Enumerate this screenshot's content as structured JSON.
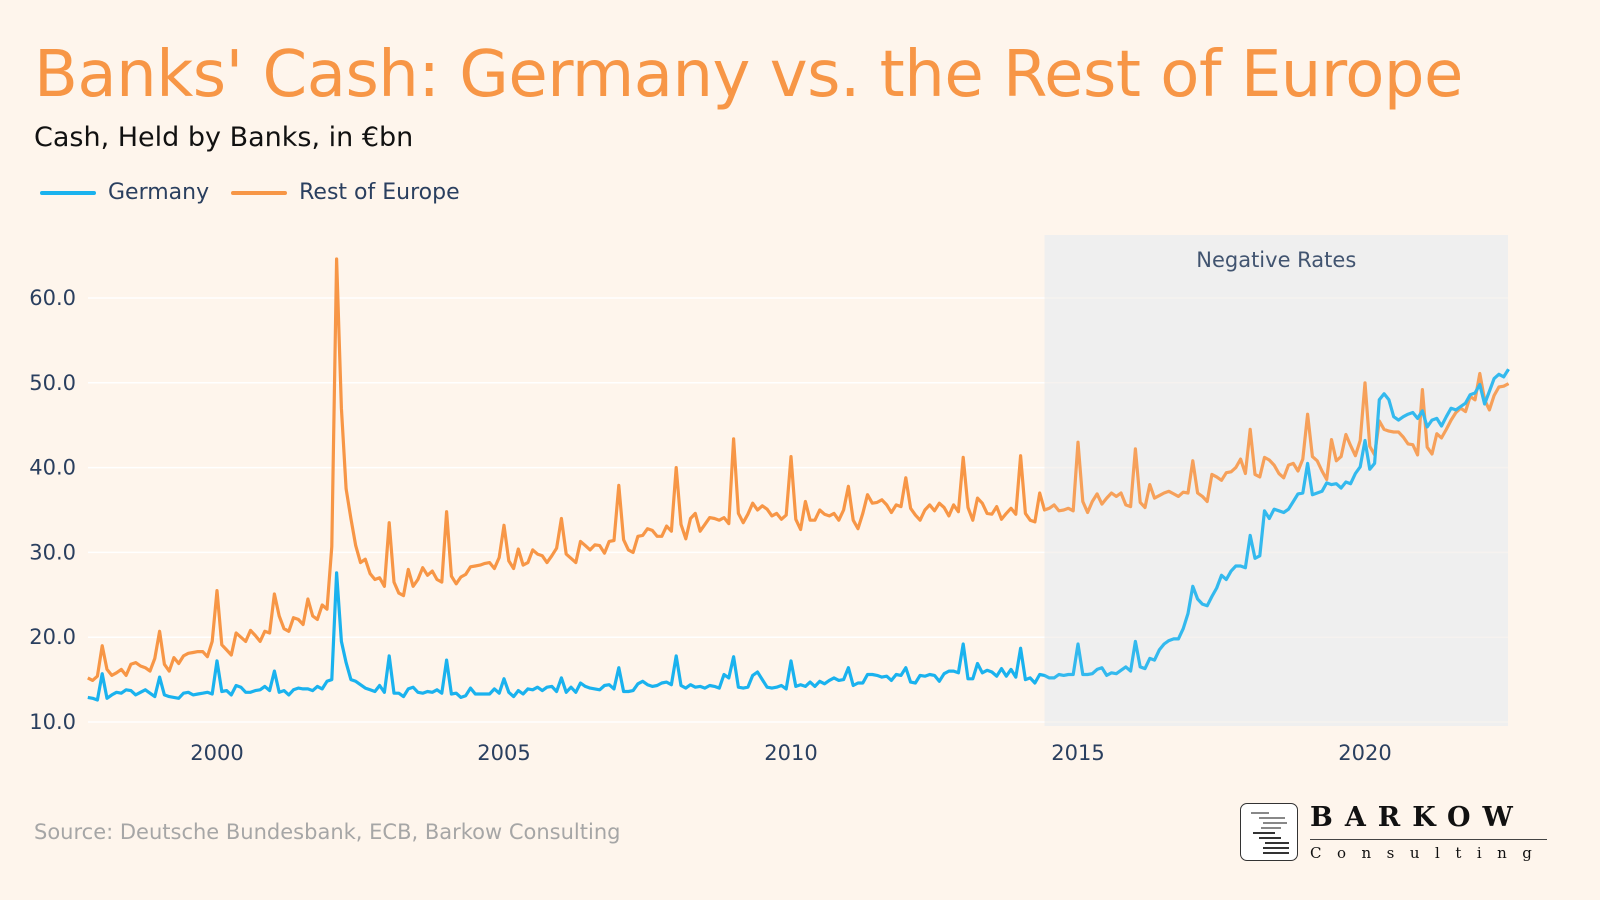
{
  "title": "Banks' Cash: Germany vs. the Rest of Europe",
  "subtitle": "Cash, Held by Banks, in €bn",
  "source": "Source: Deutsche Bundesbank, ECB, Barkow Consulting",
  "logo": {
    "name": "BARKOW",
    "tagline": "Consulting"
  },
  "chart_data": {
    "type": "line",
    "title": "Banks' Cash: Germany vs. the Rest of Europe",
    "subtitle": "Cash, Held by Banks, in €bn",
    "xlabel": "",
    "ylabel": "",
    "frequency": "monthly",
    "first_month": "1997-10",
    "x_ticks": [
      "2000",
      "2005",
      "2010",
      "2015",
      "2020"
    ],
    "y_ticks": [
      "10.0",
      "20.0",
      "30.0",
      "40.0",
      "50.0",
      "60.0"
    ],
    "ylim": [
      9.5,
      66
    ],
    "grid": "horizontal",
    "legend_position": "top-left",
    "annotation": {
      "label": "Negative Rates",
      "from": "2014-06",
      "to": "2022-07",
      "color": "#efefef"
    },
    "series": [
      {
        "name": "Germany",
        "color": "#1ab2ee",
        "values_by_year": [
          [
            12.9,
            12.8,
            12.6
          ],
          [
            15.7,
            12.8,
            13.2,
            13.5,
            13.4,
            13.8,
            13.7,
            13.2,
            13.5,
            13.8,
            13.4,
            13.0
          ],
          [
            15.3,
            13.2,
            13.0,
            12.9,
            12.8,
            13.4,
            13.5,
            13.2,
            13.3,
            13.4,
            13.5,
            13.3
          ],
          [
            17.2,
            13.6,
            13.7,
            13.2,
            14.3,
            14.1,
            13.5,
            13.5,
            13.7,
            13.8,
            14.2,
            13.7
          ],
          [
            16.0,
            13.5,
            13.7,
            13.2,
            13.8,
            14.0,
            13.9,
            13.9,
            13.7,
            14.2,
            13.9,
            14.8
          ],
          [
            15.0,
            27.6,
            19.5,
            17.0,
            15.0,
            14.8,
            14.4,
            14.0,
            13.8,
            13.6,
            14.3,
            13.5
          ],
          [
            17.8,
            13.4,
            13.4,
            13.0,
            13.9,
            14.1,
            13.5,
            13.4,
            13.6,
            13.5,
            13.8,
            13.4
          ],
          [
            17.3,
            13.3,
            13.4,
            12.9,
            13.1,
            14.0,
            13.3,
            13.3,
            13.3,
            13.3,
            13.9,
            13.4
          ],
          [
            15.1,
            13.5,
            13.0,
            13.7,
            13.3,
            13.9,
            13.8,
            14.1,
            13.7,
            14.1,
            14.2,
            13.6
          ],
          [
            15.2,
            13.5,
            14.1,
            13.5,
            14.6,
            14.2,
            14.0,
            13.9,
            13.8,
            14.3,
            14.4,
            13.9
          ],
          [
            16.4,
            13.6,
            13.6,
            13.7,
            14.5,
            14.8,
            14.4,
            14.2,
            14.3,
            14.6,
            14.7,
            14.4
          ],
          [
            17.8,
            14.3,
            14.0,
            14.4,
            14.1,
            14.2,
            14.0,
            14.3,
            14.2,
            14.0,
            15.6,
            15.2
          ],
          [
            17.7,
            14.1,
            14.0,
            14.1,
            15.5,
            15.9,
            15.0,
            14.1,
            14.0,
            14.1,
            14.3,
            13.9
          ],
          [
            17.2,
            14.2,
            14.4,
            14.2,
            14.7,
            14.2,
            14.8,
            14.5,
            14.9,
            15.2,
            14.9,
            15.0
          ],
          [
            16.4,
            14.3,
            14.6,
            14.6,
            15.6,
            15.6,
            15.5,
            15.3,
            15.4,
            14.9,
            15.6,
            15.5
          ],
          [
            16.4,
            14.7,
            14.6,
            15.5,
            15.4,
            15.6,
            15.5,
            14.8,
            15.7,
            16.0,
            16.0,
            15.8
          ],
          [
            19.2,
            15.1,
            15.1,
            16.9,
            15.8,
            16.1,
            15.9,
            15.4,
            16.3,
            15.4,
            16.2,
            15.3
          ],
          [
            18.7,
            15.0,
            15.2,
            14.6,
            15.6,
            15.5,
            15.2,
            15.2,
            15.6,
            15.5,
            15.6,
            15.6
          ],
          [
            19.2,
            15.6,
            15.6,
            15.7,
            16.2,
            16.4,
            15.5,
            15.8,
            15.7,
            16.1,
            16.5,
            16.0
          ],
          [
            19.5,
            16.5,
            16.3,
            17.5,
            17.3,
            18.5,
            19.2,
            19.6,
            19.8,
            19.8,
            21.0,
            22.8
          ],
          [
            26.0,
            24.5,
            23.9,
            23.7,
            24.8,
            25.8,
            27.3,
            26.8,
            27.8,
            28.4,
            28.4,
            28.2
          ],
          [
            32.0,
            29.3,
            29.6,
            34.9,
            34.0,
            35.1,
            34.9,
            34.7,
            35.1,
            36.0,
            36.9,
            37.0
          ],
          [
            40.5,
            36.8,
            37.0,
            37.2,
            38.2,
            38.0,
            38.1,
            37.6,
            38.3,
            38.1,
            39.3,
            40.1
          ],
          [
            43.2,
            39.8,
            40.5,
            48.0,
            48.7,
            48.0,
            46.0,
            45.6,
            46.0,
            46.3,
            46.5,
            45.8
          ],
          [
            46.7,
            44.8,
            45.6,
            45.8,
            44.9,
            46.0,
            47.0,
            46.8,
            47.2,
            47.6,
            48.6,
            48.8
          ],
          [
            49.8,
            47.5,
            49.0,
            50.5,
            51.0,
            50.7,
            51.6
          ]
        ]
      },
      {
        "name": "Rest of Europe",
        "color": "#f79646",
        "values_by_year": [
          [
            15.2,
            14.9,
            15.4
          ],
          [
            19.0,
            16.2,
            15.5,
            15.8,
            16.2,
            15.5,
            16.8,
            17.0,
            16.6,
            16.4,
            16.0,
            17.5
          ],
          [
            20.7,
            16.8,
            16.0,
            17.6,
            16.9,
            17.8,
            18.1,
            18.2,
            18.3,
            18.3,
            17.7,
            19.5
          ],
          [
            25.5,
            19.1,
            18.5,
            17.9,
            20.5,
            20.0,
            19.5,
            20.8,
            20.2,
            19.5,
            20.7,
            20.5
          ],
          [
            25.1,
            22.5,
            21.0,
            20.7,
            22.3,
            22.1,
            21.5,
            24.5,
            22.5,
            22.1,
            23.8,
            23.3
          ],
          [
            30.7,
            64.6,
            47.0,
            37.5,
            34.0,
            30.8,
            28.8,
            29.2,
            27.5,
            26.8,
            27.0,
            26.0
          ],
          [
            33.5,
            26.5,
            25.2,
            24.9,
            28.0,
            26.0,
            26.8,
            28.2,
            27.3,
            27.8,
            26.8,
            26.5
          ],
          [
            34.8,
            27.2,
            26.3,
            27.1,
            27.4,
            28.3,
            28.4,
            28.5,
            28.7,
            28.8,
            28.1,
            29.4
          ],
          [
            33.2,
            29.0,
            28.1,
            30.4,
            28.5,
            28.8,
            30.3,
            29.8,
            29.6,
            28.8,
            29.6,
            30.5
          ],
          [
            34.0,
            29.8,
            29.3,
            28.8,
            31.3,
            30.8,
            30.3,
            30.9,
            30.8,
            29.9,
            31.3,
            31.4
          ],
          [
            37.9,
            31.5,
            30.3,
            30.0,
            31.9,
            32.0,
            32.8,
            32.6,
            31.9,
            31.9,
            33.1,
            32.5
          ],
          [
            40.0,
            33.3,
            31.6,
            34.0,
            34.6,
            32.5,
            33.3,
            34.1,
            34.0,
            33.8,
            34.1,
            33.4
          ],
          [
            43.4,
            34.6,
            33.5,
            34.5,
            35.8,
            35.0,
            35.5,
            35.1,
            34.3,
            34.6,
            33.9,
            34.4
          ],
          [
            41.3,
            33.9,
            32.7,
            36.0,
            33.8,
            33.8,
            35.0,
            34.5,
            34.3,
            34.6,
            33.8,
            35.0
          ],
          [
            37.8,
            33.8,
            32.8,
            34.6,
            36.8,
            35.8,
            35.9,
            36.2,
            35.6,
            34.7,
            35.6,
            35.4
          ],
          [
            38.8,
            35.2,
            34.4,
            33.8,
            35.0,
            35.6,
            34.9,
            35.8,
            35.3,
            34.3,
            35.6,
            34.8
          ],
          [
            41.2,
            35.3,
            33.8,
            36.4,
            35.8,
            34.6,
            34.5,
            35.4,
            33.9,
            34.6,
            35.2,
            34.5
          ],
          [
            41.4,
            34.6,
            33.8,
            33.6,
            37.0,
            35.0,
            35.2,
            35.6,
            34.9,
            35.0,
            35.2,
            34.9
          ],
          [
            43.0,
            36.0,
            34.7,
            36.0,
            36.9,
            35.7,
            36.4,
            37.0,
            36.6,
            37.0,
            35.6,
            35.4
          ],
          [
            42.2,
            35.9,
            35.3,
            38.0,
            36.4,
            36.7,
            37.0,
            37.2,
            36.9,
            36.6,
            37.1,
            37.0
          ],
          [
            40.8,
            37.0,
            36.6,
            36.0,
            39.2,
            38.9,
            38.5,
            39.4,
            39.5,
            40.0,
            41.0,
            39.3
          ],
          [
            44.5,
            39.2,
            38.9,
            41.2,
            40.9,
            40.3,
            39.3,
            38.8,
            40.3,
            40.5,
            39.6,
            41.0
          ],
          [
            46.3,
            41.3,
            40.8,
            39.6,
            38.6,
            43.3,
            40.8,
            41.3,
            43.9,
            42.6,
            41.4,
            43.2
          ],
          [
            50.0,
            42.5,
            41.5,
            45.5,
            44.5,
            44.3,
            44.2,
            44.2,
            43.6,
            42.8,
            42.7,
            41.5
          ],
          [
            49.2,
            42.4,
            41.6,
            44.0,
            43.5,
            44.5,
            45.6,
            46.5,
            47.0,
            46.6,
            48.4,
            48.0
          ],
          [
            51.1,
            48.0,
            46.8,
            48.5,
            49.5,
            49.6,
            49.9
          ]
        ]
      }
    ]
  }
}
